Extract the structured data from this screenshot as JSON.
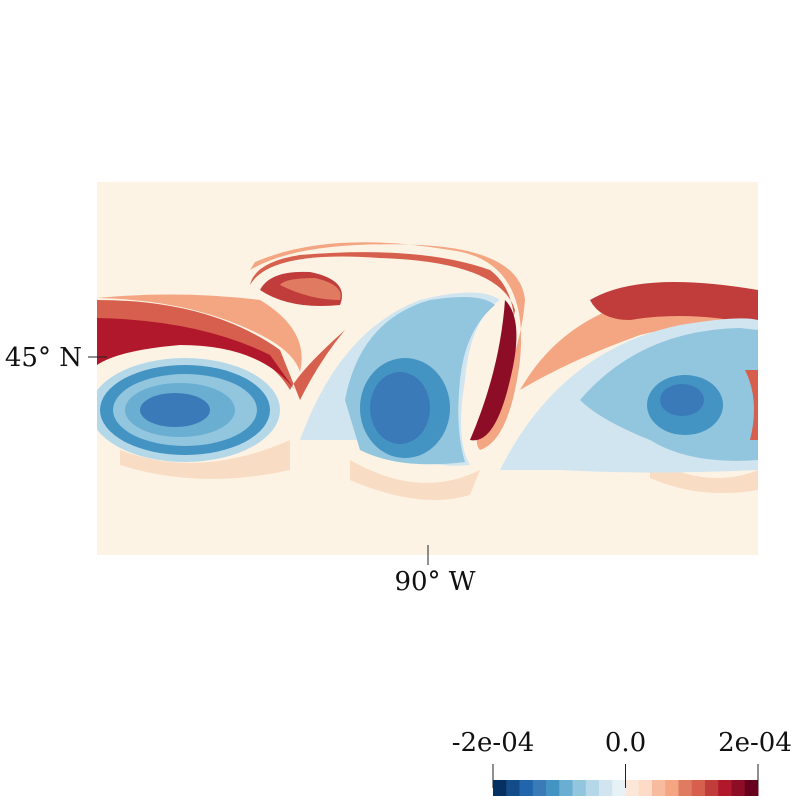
{
  "map": {
    "lat_label": "45° N",
    "lon_label": "90° W",
    "colorbar": {
      "range": [
        -0.0002,
        0.0002
      ],
      "ticks": [
        {
          "value": -0.0002,
          "label": "-2e-04"
        },
        {
          "value": 0,
          "label": "0.0"
        },
        {
          "value": 0.0002,
          "label": "2e-04"
        }
      ],
      "colors": [
        "#053061",
        "#134c88",
        "#2166ac",
        "#3a7ab8",
        "#4393c3",
        "#6aaed2",
        "#92c5de",
        "#b5d8e8",
        "#d1e5f0",
        "#e7f2f7",
        "#fbe6d8",
        "#fddbc7",
        "#f7bc9f",
        "#f4a582",
        "#e07b61",
        "#d6604d",
        "#c03d3b",
        "#b2182b",
        "#8c0d25",
        "#67001f"
      ]
    }
  }
}
